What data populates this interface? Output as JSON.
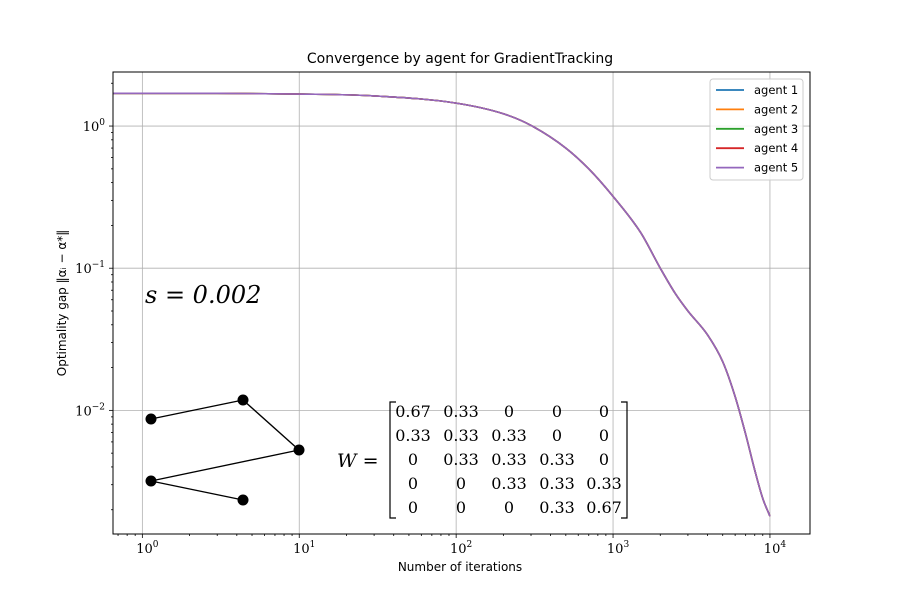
{
  "chart_data": {
    "type": "line",
    "title": "Convergence by agent for GradientTracking",
    "xlabel": "Number of iterations",
    "ylabel": "Optimality gap ‖αᵢ − α*‖",
    "xscale": "log",
    "yscale": "log",
    "xlim": [
      0.65,
      18000
    ],
    "ylim": [
      0.00135,
      2.4
    ],
    "xticks": [
      {
        "value": 1,
        "base": "10",
        "exp": "0"
      },
      {
        "value": 10,
        "base": "10",
        "exp": "1"
      },
      {
        "value": 100,
        "base": "10",
        "exp": "2"
      },
      {
        "value": 1000,
        "base": "10",
        "exp": "3"
      },
      {
        "value": 10000,
        "base": "10",
        "exp": "4"
      }
    ],
    "yticks": [
      {
        "value": 1,
        "base": "10",
        "exp": "0"
      },
      {
        "value": 0.1,
        "base": "10",
        "exp": "−1"
      },
      {
        "value": 0.01,
        "base": "10",
        "exp": "−2"
      }
    ],
    "grid": true,
    "legend_position": "top-right",
    "x": [
      0.65,
      1,
      3,
      10,
      30,
      100,
      200,
      300,
      500,
      700,
      1000,
      1500,
      2000,
      2500,
      3000,
      4000,
      5000,
      6000,
      7000,
      8000,
      9000,
      10000
    ],
    "series": [
      {
        "name": "agent 1",
        "color": "#1f77b4",
        "values": [
          1.7,
          1.7,
          1.7,
          1.68,
          1.63,
          1.45,
          1.22,
          1.01,
          0.7,
          0.5,
          0.32,
          0.178,
          0.1,
          0.066,
          0.05,
          0.034,
          0.022,
          0.0125,
          0.0068,
          0.0038,
          0.0024,
          0.0018
        ]
      },
      {
        "name": "agent 2",
        "color": "#ff7f0e",
        "values": [
          1.7,
          1.7,
          1.7,
          1.68,
          1.63,
          1.45,
          1.22,
          1.01,
          0.7,
          0.5,
          0.32,
          0.178,
          0.1,
          0.066,
          0.05,
          0.034,
          0.022,
          0.0125,
          0.0068,
          0.0038,
          0.0024,
          0.0018
        ]
      },
      {
        "name": "agent 3",
        "color": "#2ca02c",
        "values": [
          1.7,
          1.7,
          1.7,
          1.68,
          1.63,
          1.45,
          1.22,
          1.01,
          0.7,
          0.5,
          0.32,
          0.178,
          0.1,
          0.066,
          0.05,
          0.034,
          0.022,
          0.0125,
          0.0068,
          0.0038,
          0.0024,
          0.0018
        ]
      },
      {
        "name": "agent 4",
        "color": "#d62728",
        "values": [
          1.7,
          1.7,
          1.7,
          1.68,
          1.63,
          1.45,
          1.22,
          1.01,
          0.7,
          0.5,
          0.32,
          0.178,
          0.1,
          0.066,
          0.05,
          0.034,
          0.022,
          0.0125,
          0.0068,
          0.0038,
          0.0024,
          0.0018
        ]
      },
      {
        "name": "agent 5",
        "color": "#9467bd",
        "values": [
          1.7,
          1.7,
          1.7,
          1.68,
          1.63,
          1.45,
          1.22,
          1.01,
          0.7,
          0.5,
          0.32,
          0.178,
          0.1,
          0.066,
          0.05,
          0.034,
          0.022,
          0.0125,
          0.0068,
          0.0038,
          0.0024,
          0.0018
        ]
      }
    ],
    "annotations": {
      "s_label": "s = 0.002",
      "matrix_label": "W =",
      "matrix": [
        [
          "0.67",
          "0.33",
          "0",
          "0",
          "0"
        ],
        [
          "0.33",
          "0.33",
          "0.33",
          "0",
          "0"
        ],
        [
          "0",
          "0.33",
          "0.33",
          "0.33",
          "0"
        ],
        [
          "0",
          "0",
          "0.33",
          "0.33",
          "0.33"
        ],
        [
          "0",
          "0",
          "0",
          "0.33",
          "0.67"
        ]
      ],
      "graph_edges": [
        [
          0,
          1
        ],
        [
          1,
          2
        ],
        [
          2,
          3
        ],
        [
          3,
          4
        ]
      ]
    }
  }
}
